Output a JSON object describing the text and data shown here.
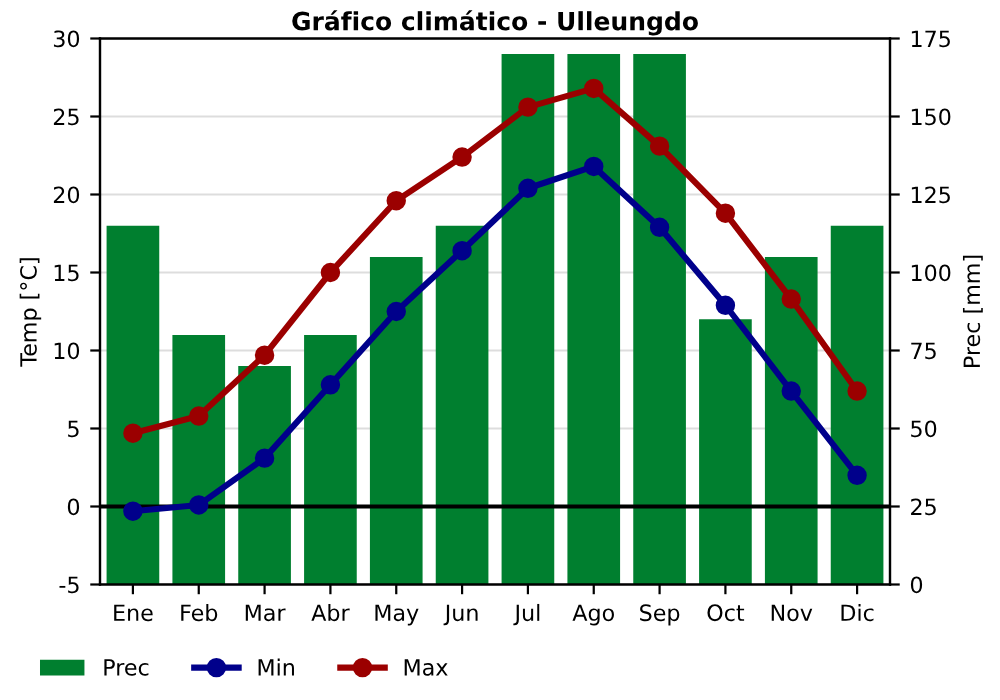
{
  "chart_data": {
    "type": "line",
    "title": "Gráfico climático - Ulleungdo",
    "categories": [
      "Ene",
      "Feb",
      "Mar",
      "Abr",
      "May",
      "Jun",
      "Jul",
      "Ago",
      "Sep",
      "Oct",
      "Nov",
      "Dic"
    ],
    "series": [
      {
        "name": "Prec",
        "type": "bar",
        "axis": "y2",
        "color": "#007f2f",
        "values": [
          115,
          80,
          70,
          80,
          105,
          115,
          170,
          170,
          170,
          85,
          105,
          115
        ]
      },
      {
        "name": "Min",
        "color": "#00008b",
        "values": [
          -0.3,
          0.1,
          3.1,
          7.8,
          12.5,
          16.4,
          20.4,
          21.8,
          17.9,
          12.9,
          7.4,
          2.0
        ]
      },
      {
        "name": "Max",
        "color": "#9b0000",
        "values": [
          4.7,
          5.8,
          9.7,
          15.0,
          19.6,
          22.4,
          25.6,
          26.8,
          23.1,
          18.8,
          13.3,
          7.4
        ]
      }
    ],
    "ylabel": "Temp [°C]",
    "y2label": "Prec [mm]",
    "ylim": [
      -5,
      30
    ],
    "yticks": [
      -5,
      0,
      5,
      10,
      15,
      20,
      25,
      30
    ],
    "y2lim": [
      0,
      175
    ],
    "y2ticks": [
      0,
      25,
      50,
      75,
      100,
      125,
      150,
      175
    ],
    "ref_lines": [
      {
        "axis": "y",
        "value": 0,
        "color": "#000000"
      }
    ],
    "grid": true,
    "legend": "bottom left",
    "marker": "circle",
    "line_style": "solid"
  }
}
